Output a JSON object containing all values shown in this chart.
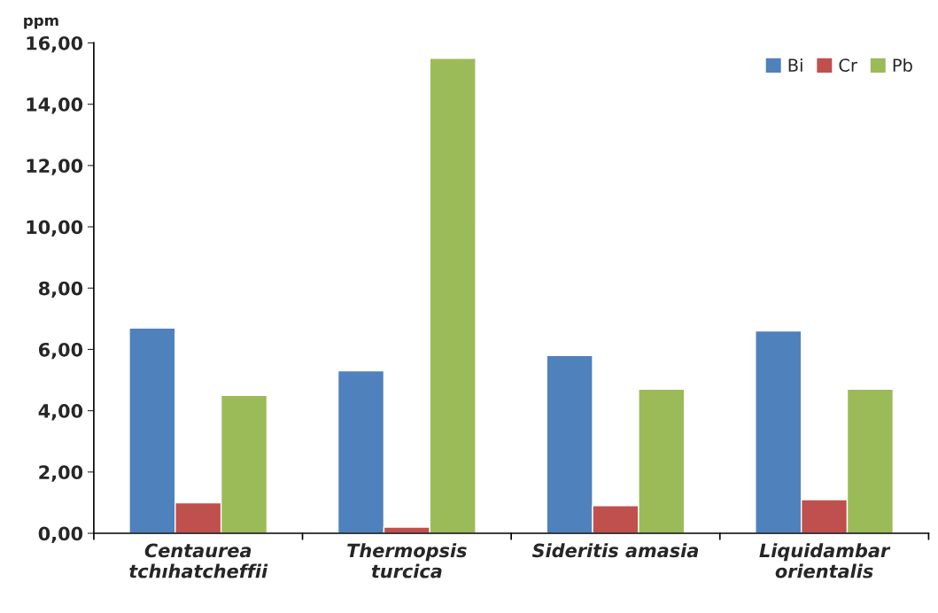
{
  "chart_data": {
    "type": "bar",
    "ylabel": "ppm",
    "categories": [
      "Centaurea\ntchıhatcheffii",
      "Thermopsis\nturcica",
      "Sideritis amasia",
      "Liquidambar\norientalis"
    ],
    "series": [
      {
        "name": "Bi",
        "color": "#4f81bd",
        "values": [
          6.7,
          5.3,
          5.8,
          6.6
        ]
      },
      {
        "name": "Cr",
        "color": "#c0504d",
        "values": [
          1.0,
          0.2,
          0.9,
          1.1
        ]
      },
      {
        "name": "Pb",
        "color": "#9bbb59",
        "values": [
          4.5,
          15.5,
          4.7,
          4.7
        ]
      }
    ],
    "ylim": [
      0,
      16
    ],
    "yticks": [
      {
        "value": 0,
        "label": "0,00"
      },
      {
        "value": 2,
        "label": "2,00"
      },
      {
        "value": 4,
        "label": "4,00"
      },
      {
        "value": 6,
        "label": "6,00"
      },
      {
        "value": 8,
        "label": "8,00"
      },
      {
        "value": 10,
        "label": "10,00"
      },
      {
        "value": 12,
        "label": "12,00"
      },
      {
        "value": 14,
        "label": "14,00"
      },
      {
        "value": 16,
        "label": "16,00"
      }
    ],
    "grid": false,
    "legend": "top right"
  }
}
